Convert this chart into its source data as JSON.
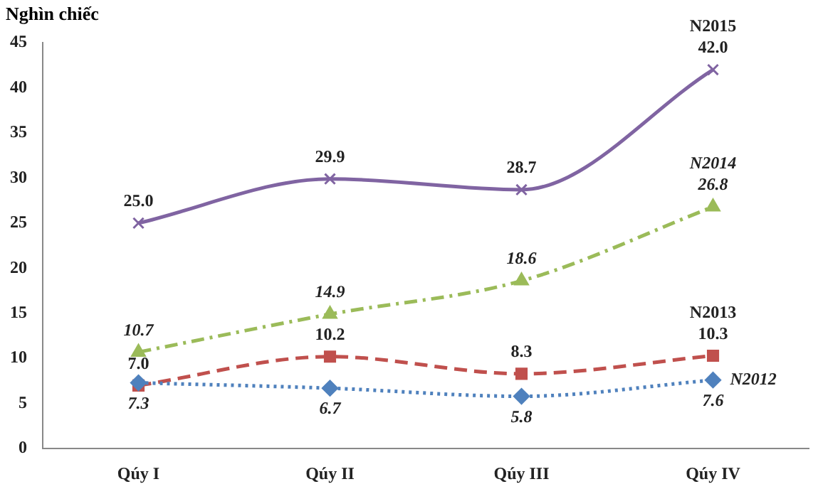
{
  "chart_data": {
    "type": "line",
    "ylabel": "Nghìn chiếc",
    "categories": [
      "Qúy I",
      "Qúy II",
      "Qúy III",
      "Qúy IV"
    ],
    "series": [
      {
        "name": "N2012",
        "color": "#4f81bd",
        "values": [
          7.3,
          6.7,
          5.8,
          7.6
        ],
        "value_labels": [
          "7.3",
          "6.7",
          "5.8",
          "7.6"
        ],
        "marker": "diamond",
        "line_style": "dotted"
      },
      {
        "name": "N2013",
        "color": "#c0504d",
        "values": [
          7.0,
          10.2,
          8.3,
          10.3
        ],
        "value_labels": [
          "7.0",
          "10.2",
          "8.3",
          "10.3"
        ],
        "marker": "square",
        "line_style": "dashed"
      },
      {
        "name": "N2014",
        "color": "#9bbb59",
        "values": [
          10.7,
          14.9,
          18.6,
          26.8
        ],
        "value_labels": [
          "10.7",
          "14.9",
          "18.6",
          "26.8"
        ],
        "marker": "triangle",
        "line_style": "dashdot"
      },
      {
        "name": "N2015",
        "color": "#8064a2",
        "values": [
          25.0,
          29.9,
          28.7,
          42.0
        ],
        "value_labels": [
          "25.0",
          "29.9",
          "28.7",
          "42.0"
        ],
        "marker": "cross",
        "line_style": "solid"
      }
    ],
    "ylim": [
      0,
      45
    ],
    "yticks": [
      0,
      5,
      10,
      15,
      20,
      25,
      30,
      35,
      40,
      45
    ],
    "grid": false,
    "legend": false
  }
}
